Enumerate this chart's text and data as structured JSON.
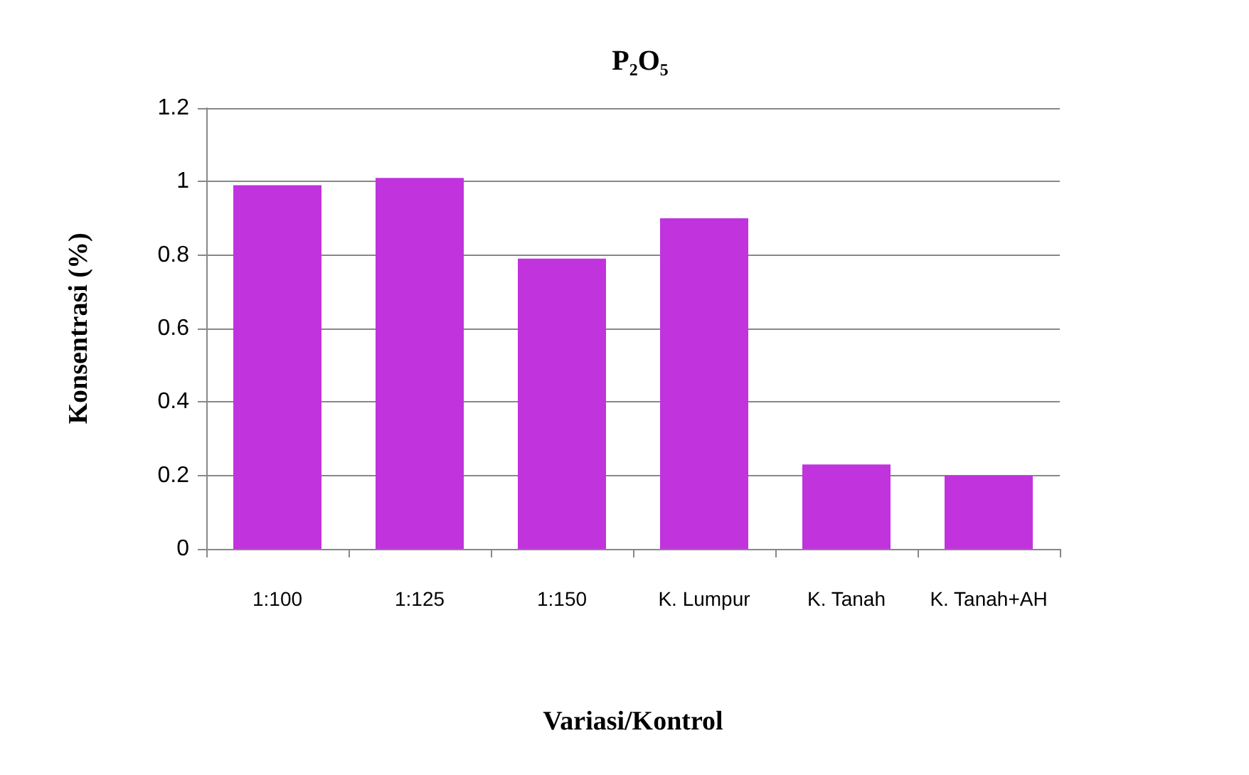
{
  "chart_data": {
    "type": "bar",
    "title": "P₂O₅",
    "xlabel": "Variasi/Kontrol",
    "ylabel": "Konsentrasi (%)",
    "categories": [
      "1:100",
      "1:125",
      "1:150",
      "K. Lumpur",
      "K. Tanah",
      "K. Tanah+AH"
    ],
    "values": [
      0.99,
      1.01,
      0.79,
      0.9,
      0.23,
      0.2
    ],
    "color": "#c133dd",
    "ylim": [
      0,
      1.2
    ],
    "yticks": [
      0,
      0.2,
      0.4,
      0.6,
      0.8,
      1,
      1.2
    ],
    "grid": "y"
  }
}
